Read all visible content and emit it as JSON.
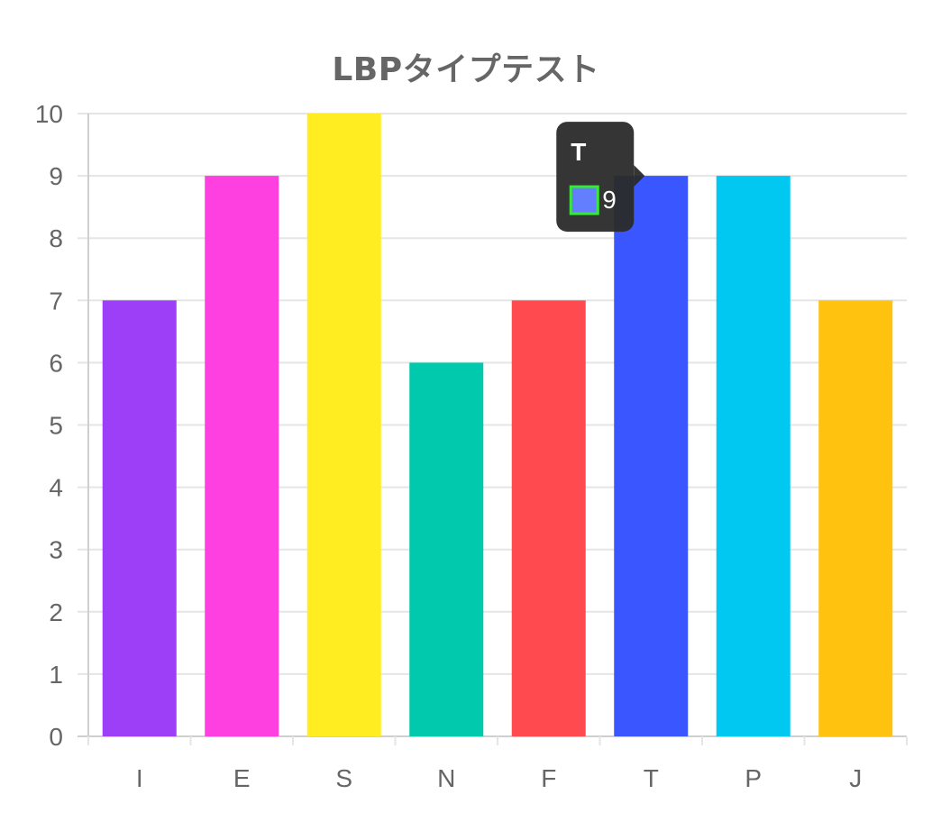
{
  "chart_data": {
    "type": "bar",
    "title": "LBPタイプテスト",
    "categories": [
      "I",
      "E",
      "S",
      "N",
      "F",
      "T",
      "P",
      "J"
    ],
    "values": [
      7,
      9,
      10,
      6,
      7,
      9,
      9,
      7
    ],
    "colors": [
      "#9d3ff6",
      "#ff40e0",
      "#ffed21",
      "#00c9ad",
      "#ff4b4f",
      "#3a56ff",
      "#00c8f0",
      "#ffc20e"
    ],
    "ylim": [
      0,
      10
    ],
    "yticks": [
      0,
      1,
      2,
      3,
      4,
      5,
      6,
      7,
      8,
      9,
      10
    ],
    "grid": true,
    "xlabel": "",
    "ylabel": ""
  },
  "tooltip": {
    "title": "T",
    "value": "9",
    "swatch_color": "#5b78ff",
    "swatch_border": "#2ee62e",
    "background": "#2b2b2b"
  },
  "colors": {
    "grid": "#e5e5e5",
    "axis": "#cfcfcf",
    "tick_label": "#666666"
  }
}
